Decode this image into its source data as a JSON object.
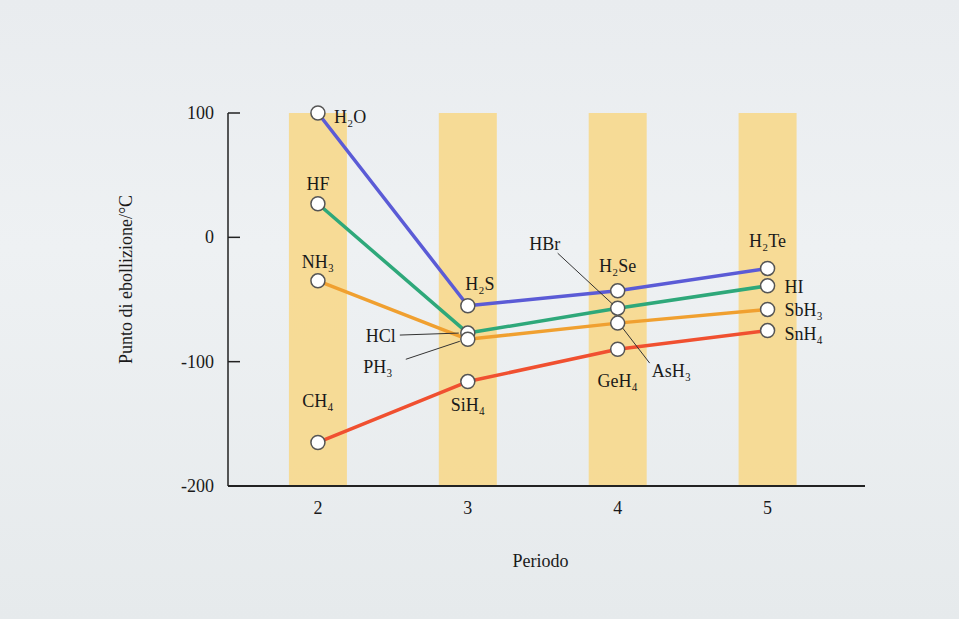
{
  "chart_data": {
    "type": "line",
    "x_label": "Periodo",
    "y_label": "Punto di ebollizione/°C",
    "x": [
      2,
      3,
      4,
      5
    ],
    "xlim": [
      1.4,
      5.65
    ],
    "xticks": [
      2,
      3,
      4,
      5
    ],
    "ylim": [
      -200,
      100
    ],
    "yticks": [
      -200,
      -100,
      0,
      100
    ],
    "marker": "circle",
    "series": [
      {
        "color": "#5b5bd6",
        "values": [
          100,
          -55,
          -43,
          -25
        ],
        "point_labels": [
          "H₂O",
          "H₂S",
          "H₂Se",
          "H₂Te"
        ]
      },
      {
        "color": "#2ea87a",
        "values": [
          27,
          -77,
          -57,
          -39
        ],
        "point_labels": [
          "HF",
          "HCl",
          "HBr",
          "HI"
        ]
      },
      {
        "color": "#f0a030",
        "values": [
          -35,
          -82,
          -69,
          -58
        ],
        "point_labels": [
          "NH₃",
          "PH₃",
          "AsH₃",
          "SbH₃"
        ]
      },
      {
        "color": "#f05030",
        "values": [
          -165,
          -116,
          -90,
          -75
        ],
        "point_labels": [
          "CH₄",
          "SiH₄",
          "GeH₄",
          "SnH₄"
        ]
      }
    ]
  }
}
